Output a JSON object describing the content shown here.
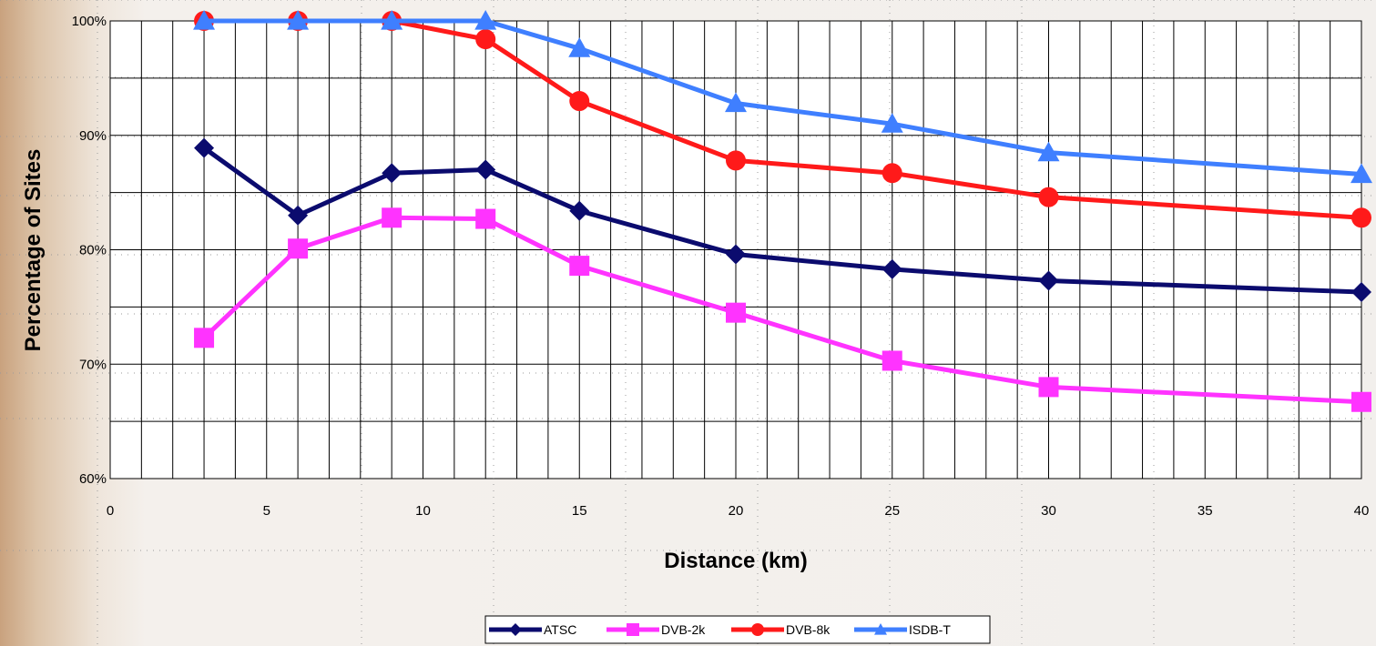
{
  "chart_data": {
    "type": "line",
    "title": "",
    "xlabel": "Distance (km)",
    "ylabel": "Percentage of Sites",
    "xlim": [
      0,
      40
    ],
    "ylim": [
      60,
      100
    ],
    "x_ticks": [
      "0",
      "5",
      "10",
      "15",
      "20",
      "25",
      "30",
      "35",
      "40"
    ],
    "y_ticks": [
      "60%",
      "70%",
      "80%",
      "90%",
      "100%"
    ],
    "x_tick_values": [
      0,
      5,
      10,
      15,
      20,
      25,
      30,
      35,
      40
    ],
    "y_tick_values": [
      60,
      70,
      80,
      90,
      100
    ],
    "x": [
      3,
      6,
      9,
      12,
      15,
      20,
      25,
      30,
      40
    ],
    "grid": true,
    "legend_position": "bottom",
    "series": [
      {
        "name": "ATSC",
        "color": "#0b0b6e",
        "marker": "diamond",
        "values": [
          88.9,
          83.0,
          86.7,
          87.0,
          83.4,
          79.6,
          78.3,
          77.3,
          76.3
        ]
      },
      {
        "name": "DVB-2k",
        "color": "#ff33ff",
        "marker": "square",
        "values": [
          72.3,
          80.1,
          82.8,
          82.7,
          78.6,
          74.5,
          70.3,
          68.0,
          66.7
        ]
      },
      {
        "name": "DVB-8k",
        "color": "#ff1a1a",
        "marker": "circle",
        "values": [
          100,
          100,
          100,
          98.4,
          93.0,
          87.8,
          86.7,
          84.6,
          82.8
        ]
      },
      {
        "name": "ISDB-T",
        "color": "#3f7fff",
        "marker": "triangle",
        "values": [
          100,
          100,
          100,
          100,
          97.6,
          92.8,
          91.0,
          88.5,
          86.6
        ]
      }
    ]
  }
}
